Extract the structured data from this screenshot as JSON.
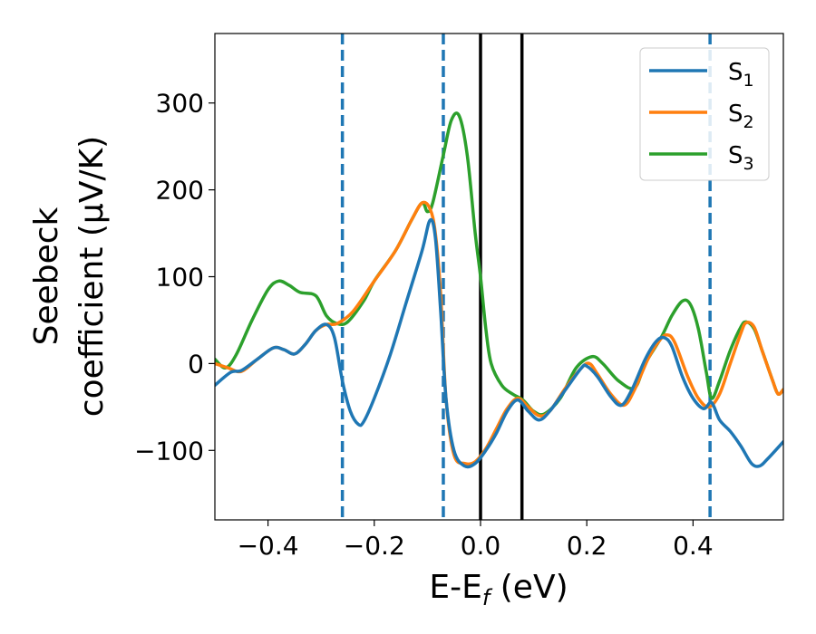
{
  "chart_data": {
    "type": "line",
    "xlabel": "E-E",
    "xlabel_sub": "f",
    "xlabel_unit": " (eV)",
    "ylabel_line1": "Seebeck",
    "ylabel_line2": "coefficient  (μV/K)",
    "xlim": [
      -0.5,
      0.57
    ],
    "ylim": [
      -180,
      380
    ],
    "xticks": [
      -0.4,
      -0.2,
      0.0,
      0.2,
      0.4
    ],
    "xtick_labels": [
      "−0.4",
      "−0.2",
      "0.0",
      "0.2",
      "0.4"
    ],
    "yticks": [
      -100,
      0,
      100,
      200,
      300
    ],
    "ytick_labels": [
      "−100",
      "0",
      "100",
      "200",
      "300"
    ],
    "grid": false,
    "legend_placement": "top-right",
    "vlines": [
      {
        "x": -0.26,
        "style": "dashed",
        "color": "#1f77b4"
      },
      {
        "x": -0.07,
        "style": "dashed",
        "color": "#1f77b4"
      },
      {
        "x": 0.0,
        "style": "solid",
        "color": "#000000"
      },
      {
        "x": 0.078,
        "style": "solid",
        "color": "#000000"
      },
      {
        "x": 0.432,
        "style": "dashed",
        "color": "#1f77b4"
      }
    ],
    "series": [
      {
        "name": "S",
        "sub": "1",
        "color": "#1f77b4",
        "points": [
          [
            -0.5,
            -25
          ],
          [
            -0.47,
            -10
          ],
          [
            -0.45,
            -8
          ],
          [
            -0.42,
            5
          ],
          [
            -0.39,
            18
          ],
          [
            -0.37,
            16
          ],
          [
            -0.35,
            11
          ],
          [
            -0.33,
            22
          ],
          [
            -0.31,
            38
          ],
          [
            -0.29,
            45
          ],
          [
            -0.275,
            30
          ],
          [
            -0.26,
            -20
          ],
          [
            -0.245,
            -55
          ],
          [
            -0.23,
            -70
          ],
          [
            -0.22,
            -67
          ],
          [
            -0.2,
            -40
          ],
          [
            -0.17,
            10
          ],
          [
            -0.14,
            70
          ],
          [
            -0.11,
            130
          ],
          [
            -0.095,
            165
          ],
          [
            -0.085,
            145
          ],
          [
            -0.075,
            60
          ],
          [
            -0.065,
            -40
          ],
          [
            -0.05,
            -100
          ],
          [
            -0.03,
            -118
          ],
          [
            -0.01,
            -115
          ],
          [
            0.01,
            -100
          ],
          [
            0.03,
            -80
          ],
          [
            0.05,
            -55
          ],
          [
            0.07,
            -42
          ],
          [
            0.09,
            -55
          ],
          [
            0.11,
            -65
          ],
          [
            0.13,
            -55
          ],
          [
            0.16,
            -30
          ],
          [
            0.19,
            -5
          ],
          [
            0.2,
            -3
          ],
          [
            0.22,
            -15
          ],
          [
            0.245,
            -38
          ],
          [
            0.265,
            -48
          ],
          [
            0.285,
            -30
          ],
          [
            0.31,
            5
          ],
          [
            0.33,
            25
          ],
          [
            0.345,
            30
          ],
          [
            0.36,
            20
          ],
          [
            0.38,
            -15
          ],
          [
            0.4,
            -40
          ],
          [
            0.42,
            -52
          ],
          [
            0.435,
            -45
          ],
          [
            0.45,
            -65
          ],
          [
            0.47,
            -78
          ],
          [
            0.49,
            -95
          ],
          [
            0.51,
            -115
          ],
          [
            0.525,
            -118
          ],
          [
            0.54,
            -110
          ],
          [
            0.57,
            -90
          ]
        ]
      },
      {
        "name": "S",
        "sub": "2",
        "color": "#ff7f0e",
        "points": [
          [
            -0.5,
            0
          ],
          [
            -0.475,
            -5
          ],
          [
            -0.45,
            -9
          ],
          [
            -0.42,
            5
          ],
          [
            -0.39,
            18
          ],
          [
            -0.37,
            16
          ],
          [
            -0.35,
            11
          ],
          [
            -0.33,
            22
          ],
          [
            -0.31,
            38
          ],
          [
            -0.29,
            45
          ],
          [
            -0.27,
            46
          ],
          [
            -0.24,
            60
          ],
          [
            -0.2,
            95
          ],
          [
            -0.16,
            130
          ],
          [
            -0.13,
            165
          ],
          [
            -0.11,
            185
          ],
          [
            -0.095,
            178
          ],
          [
            -0.085,
            150
          ],
          [
            -0.075,
            80
          ],
          [
            -0.065,
            -40
          ],
          [
            -0.05,
            -105
          ],
          [
            -0.03,
            -115
          ],
          [
            -0.01,
            -113
          ],
          [
            0.01,
            -98
          ],
          [
            0.03,
            -75
          ],
          [
            0.05,
            -52
          ],
          [
            0.07,
            -40
          ],
          [
            0.09,
            -50
          ],
          [
            0.11,
            -60
          ],
          [
            0.13,
            -55
          ],
          [
            0.16,
            -28
          ],
          [
            0.19,
            -5
          ],
          [
            0.205,
            0
          ],
          [
            0.22,
            -12
          ],
          [
            0.245,
            -35
          ],
          [
            0.27,
            -48
          ],
          [
            0.29,
            -30
          ],
          [
            0.315,
            5
          ],
          [
            0.335,
            25
          ],
          [
            0.35,
            33
          ],
          [
            0.365,
            25
          ],
          [
            0.39,
            -15
          ],
          [
            0.41,
            -40
          ],
          [
            0.43,
            -50
          ],
          [
            0.45,
            -35
          ],
          [
            0.47,
            0
          ],
          [
            0.49,
            35
          ],
          [
            0.5,
            47
          ],
          [
            0.515,
            42
          ],
          [
            0.53,
            15
          ],
          [
            0.55,
            -20
          ],
          [
            0.56,
            -35
          ],
          [
            0.57,
            -30
          ]
        ]
      },
      {
        "name": "S",
        "sub": "3",
        "color": "#2ca02c",
        "points": [
          [
            -0.5,
            5
          ],
          [
            -0.48,
            -5
          ],
          [
            -0.46,
            10
          ],
          [
            -0.43,
            50
          ],
          [
            -0.4,
            85
          ],
          [
            -0.38,
            95
          ],
          [
            -0.36,
            90
          ],
          [
            -0.34,
            82
          ],
          [
            -0.31,
            78
          ],
          [
            -0.29,
            55
          ],
          [
            -0.27,
            46
          ],
          [
            -0.25,
            48
          ],
          [
            -0.22,
            72
          ],
          [
            -0.2,
            95
          ],
          [
            -0.16,
            130
          ],
          [
            -0.13,
            165
          ],
          [
            -0.11,
            185
          ],
          [
            -0.1,
            175
          ],
          [
            -0.09,
            185
          ],
          [
            -0.07,
            240
          ],
          [
            -0.055,
            280
          ],
          [
            -0.04,
            285
          ],
          [
            -0.025,
            240
          ],
          [
            -0.01,
            150
          ],
          [
            0.0,
            100
          ],
          [
            0.01,
            40
          ],
          [
            0.02,
            0
          ],
          [
            0.04,
            -25
          ],
          [
            0.06,
            -35
          ],
          [
            0.08,
            -42
          ],
          [
            0.1,
            -55
          ],
          [
            0.12,
            -58
          ],
          [
            0.15,
            -40
          ],
          [
            0.18,
            -5
          ],
          [
            0.21,
            8
          ],
          [
            0.23,
            0
          ],
          [
            0.26,
            -20
          ],
          [
            0.29,
            -28
          ],
          [
            0.31,
            0
          ],
          [
            0.34,
            30
          ],
          [
            0.36,
            55
          ],
          [
            0.38,
            72
          ],
          [
            0.395,
            68
          ],
          [
            0.41,
            40
          ],
          [
            0.425,
            -10
          ],
          [
            0.435,
            -40
          ],
          [
            0.45,
            -20
          ],
          [
            0.47,
            15
          ],
          [
            0.49,
            42
          ],
          [
            0.5,
            48
          ],
          [
            0.515,
            40
          ],
          [
            0.53,
            15
          ],
          [
            0.55,
            -20
          ],
          [
            0.56,
            -35
          ],
          [
            0.57,
            -30
          ]
        ]
      }
    ]
  }
}
